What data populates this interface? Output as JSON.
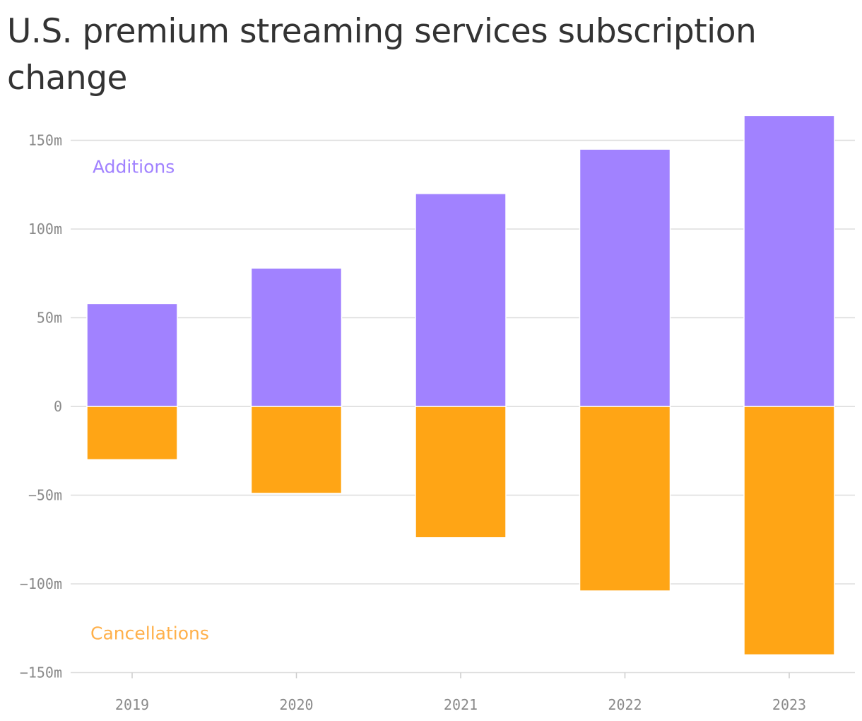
{
  "chart_data": {
    "type": "bar",
    "stacked": true,
    "title": "U.S. premium streaming services subscription change",
    "categories": [
      "2019",
      "2020",
      "2021",
      "2022",
      "2023"
    ],
    "series": [
      {
        "name": "Additions",
        "color": "#a182ff",
        "values": [
          58,
          78,
          120,
          145,
          164
        ]
      },
      {
        "name": "Cancellations",
        "color": "#ffa515",
        "values": [
          -30,
          -49,
          -74,
          -104,
          -140
        ]
      }
    ],
    "y_ticks": [
      150,
      100,
      50,
      0,
      -50,
      -100,
      -150
    ],
    "y_tick_labels": [
      "150m",
      "100m",
      "50m",
      "0",
      "−50m",
      "−100m",
      "−150m"
    ],
    "ylim": [
      -150,
      165
    ],
    "grid": true,
    "label_colors": {
      "Additions": "#a182ff",
      "Cancellations": "#ffb04a"
    },
    "xlabel": "",
    "ylabel": ""
  }
}
